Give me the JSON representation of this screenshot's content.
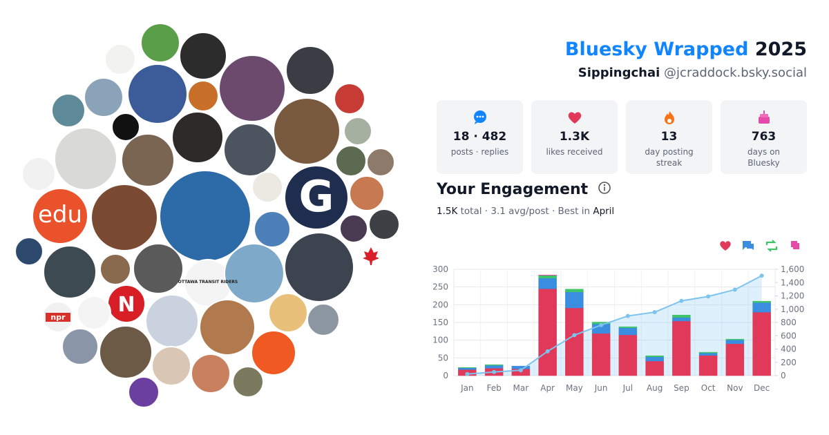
{
  "header": {
    "title": "Bluesky Wrapped",
    "year": "2025",
    "display_name": "Sippingchai",
    "handle": "@jcraddock.bsky.social"
  },
  "avatar_labels": [
    "edu",
    "npr",
    "G",
    "N",
    "OTTAWA TRANSIT RIDERS"
  ],
  "stats": [
    {
      "value": "18 · 482",
      "label": "posts · replies"
    },
    {
      "value": "1.3K",
      "label": "likes received"
    },
    {
      "value": "13",
      "label": "day posting streak"
    },
    {
      "value": "763",
      "label": "days on Bluesky"
    }
  ],
  "engagement": {
    "title": "Your Engagement",
    "summary": [
      "1.5K",
      "total · 3.1 avg/post · Best in",
      "April"
    ]
  },
  "chart_data": {
    "type": "bar",
    "stacked": true,
    "grid": true,
    "categories": [
      "Jan",
      "Feb",
      "Mar",
      "Apr",
      "May",
      "Jun",
      "Jul",
      "Aug",
      "Sep",
      "Oct",
      "Nov",
      "Dec"
    ],
    "series": [
      {
        "color": "#e0395a",
        "values": [
          17,
          21,
          19,
          245,
          191,
          119,
          115,
          41,
          154,
          57,
          90,
          179
        ]
      },
      {
        "color": "#3b8de0",
        "values": [
          5,
          8,
          8,
          30,
          45,
          27,
          20,
          12,
          10,
          7,
          11,
          27
        ]
      },
      {
        "color": "#3fc36b",
        "values": [
          1,
          2,
          0,
          8,
          8,
          5,
          3,
          3,
          7,
          2,
          2,
          4
        ]
      },
      {
        "color": "#e64aa8",
        "values": [
          0,
          0,
          0,
          1,
          0,
          0,
          0,
          0,
          0,
          0,
          0,
          0
        ]
      },
      {
        "type": "line",
        "axis": "y2",
        "color": "#7cc4ee",
        "values": [
          23,
          54,
          81,
          365,
          609,
          760,
          898,
          954,
          1125,
          1191,
          1294,
          1504
        ]
      }
    ],
    "ylim": [
      0,
      300
    ],
    "yticks": [
      0,
      50,
      100,
      150,
      200,
      250,
      300
    ],
    "y2lim": [
      0,
      1600
    ],
    "y2ticks": [
      0,
      200,
      400,
      600,
      800,
      {
        "value": 1000,
        "label": "1,000"
      },
      {
        "value": 1200,
        "label": "1,200"
      },
      {
        "value": 1400,
        "label": "1,400"
      },
      {
        "value": 1600,
        "label": "1,600"
      }
    ]
  }
}
